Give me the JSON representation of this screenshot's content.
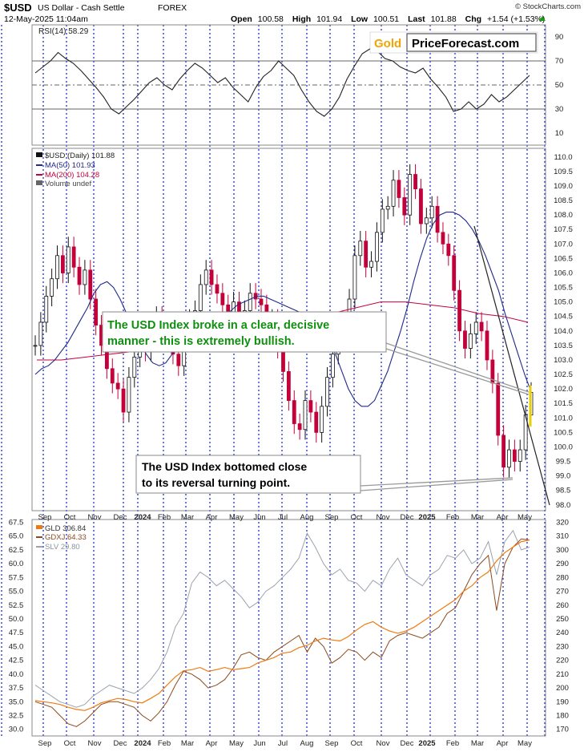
{
  "header": {
    "symbol": "$USD",
    "name": "US Dollar - Cash Settle",
    "exchange": "FOREX",
    "date": "12-May-2025 11:04am",
    "open_label": "Open",
    "open": "100.58",
    "high_label": "High",
    "high": "101.94",
    "low_label": "Low",
    "low": "100.51",
    "last_label": "Last",
    "last": "101.88",
    "chg_label": "Chg",
    "chg": "+1.54 (+1.53%)",
    "credit": "© StockCharts.com"
  },
  "logo": {
    "gold": "Gold",
    "rest": "PriceForecast.com"
  },
  "colors": {
    "price_up": "#111111",
    "price_down": "#c4003a",
    "ma50": "#1f2a8a",
    "ma200": "#c4003a",
    "gld": "#f07a12",
    "gdxj": "#8b4a1e",
    "slv": "#9aa3ad",
    "grid": "#1c2ed8",
    "annotation_green": "#0f8f0f"
  },
  "chart_data": [
    {
      "type": "line",
      "panel": "RSI",
      "title": "RSI(14) 58.29",
      "ylim": [
        0,
        100
      ],
      "y_ticks": [
        10,
        30,
        50,
        70,
        90
      ],
      "reference_lines": [
        30,
        50,
        70
      ],
      "series": [
        {
          "name": "RSI(14)",
          "values": [
            60,
            65,
            70,
            77,
            72,
            68,
            62,
            55,
            48,
            40,
            30,
            26,
            32,
            38,
            45,
            52,
            56,
            50,
            46,
            55,
            62,
            68,
            64,
            58,
            52,
            56,
            48,
            42,
            36,
            48,
            57,
            62,
            70,
            64,
            58,
            46,
            36,
            28,
            24,
            30,
            40,
            55,
            66,
            76,
            80,
            78,
            72,
            70,
            65,
            62,
            60,
            64,
            55,
            48,
            40,
            28,
            30,
            36,
            30,
            34,
            42,
            36,
            40,
            46,
            52,
            58
          ]
        }
      ]
    },
    {
      "type": "candlestick",
      "panel": "$USD (Daily)",
      "legend": [
        "$USD (Daily) 101.88",
        "MA(50) 101.93",
        "MA(200) 104.28",
        "Volume undef"
      ],
      "legend_placement": "top-left",
      "ylim": [
        97.8,
        110.3
      ],
      "y_ticks": [
        98.0,
        98.5,
        99.0,
        99.5,
        100.0,
        100.5,
        101.0,
        101.5,
        102.0,
        102.5,
        103.0,
        103.5,
        104.0,
        104.5,
        105.0,
        105.5,
        106.0,
        106.5,
        107.0,
        107.5,
        108.0,
        108.5,
        109.0,
        109.5,
        110.0
      ],
      "x_labels": [
        "Sep",
        "Oct",
        "Nov",
        "Dec",
        "2024",
        "Feb",
        "Mar",
        "Apr",
        "May",
        "Jun",
        "Jul",
        "Aug",
        "Sep",
        "Oct",
        "Nov",
        "Dec",
        "2025",
        "Feb",
        "Mar",
        "Apr",
        "May"
      ],
      "close": [
        103.5,
        104.3,
        105.2,
        105.8,
        106.6,
        106.0,
        106.9,
        106.2,
        105.6,
        106.1,
        105.1,
        104.2,
        103.5,
        102.7,
        102.2,
        102.0,
        101.2,
        102.4,
        103.1,
        103.6,
        103.3,
        104.2,
        104.5,
        103.9,
        104.3,
        103.2,
        102.8,
        103.8,
        104.4,
        104.7,
        105.6,
        106.1,
        105.6,
        105.3,
        104.9,
        104.3,
        105.0,
        104.5,
        104.7,
        105.3,
        105.1,
        104.9,
        104.2,
        104.4,
        103.4,
        102.6,
        101.6,
        100.8,
        100.6,
        101.6,
        101.2,
        100.5,
        101.4,
        102.4,
        103.2,
        103.9,
        104.3,
        105.1,
        106.6,
        107.1,
        106.2,
        106.4,
        107.4,
        108.2,
        108.3,
        109.2,
        108.6,
        108.0,
        109.4,
        108.9,
        107.7,
        107.9,
        108.3,
        107.4,
        107.0,
        106.6,
        105.4,
        104.0,
        103.4,
        103.9,
        104.3,
        104.0,
        103.0,
        102.2,
        100.4,
        99.3,
        99.9,
        99.5,
        99.9,
        101.1,
        101.88
      ],
      "ma50": [
        102.5,
        102.7,
        102.8,
        103.0,
        103.3,
        103.6,
        104.0,
        104.4,
        104.8,
        105.3,
        105.6,
        105.7,
        105.5,
        105.1,
        104.6,
        104.1,
        103.6,
        103.2,
        102.9,
        102.8,
        102.9,
        103.2,
        103.5,
        103.8,
        104.0,
        104.1,
        104.2,
        104.3,
        104.4,
        104.5,
        104.7,
        104.9,
        105.0,
        105.1,
        105.2,
        105.2,
        105.1,
        105.0,
        104.9,
        104.8,
        104.7,
        104.6,
        104.4,
        104.2,
        104.0,
        103.7,
        103.2,
        102.6,
        102.0,
        101.6,
        101.4,
        101.4,
        101.6,
        102.1,
        102.6,
        103.3,
        104.0,
        104.8,
        105.7,
        106.5,
        107.2,
        107.7,
        108.0,
        108.1,
        108.1,
        108.0,
        107.8,
        107.5,
        107.1,
        106.6,
        106.0,
        105.4,
        104.6,
        103.9,
        103.2,
        102.5,
        101.9
      ],
      "ma200": [
        103.0,
        103.0,
        103.1,
        103.2,
        103.3,
        103.4,
        103.5,
        103.6,
        103.8,
        104.0,
        104.2,
        104.4,
        104.6,
        104.8,
        105.0,
        105.0,
        104.9,
        104.8,
        104.6,
        104.5,
        104.3
      ],
      "annotations": [
        {
          "text_lines": [
            "The USD Index broke in a clear, decisive",
            "manner - this is extremely bullish."
          ],
          "color": "green"
        },
        {
          "text_lines": [
            "The USD Index bottomed close",
            "to its reversal turning point."
          ],
          "color": "black"
        }
      ]
    },
    {
      "type": "line",
      "panel": "Gold, Gold Miners, Silver",
      "legend": [
        "GLD 306.84",
        "GDXJ 64.33",
        "SLV 29.80"
      ],
      "legend_placement": "top-left",
      "y_left_ticks": [
        30.0,
        32.5,
        35.0,
        37.5,
        40.0,
        42.5,
        45.0,
        47.5,
        50.0,
        52.5,
        55.0,
        57.5,
        60.0,
        62.5,
        65.0,
        67.5
      ],
      "y_right_ticks": [
        170,
        180,
        190,
        200,
        210,
        220,
        230,
        240,
        250,
        260,
        270,
        280,
        290,
        300,
        310,
        320
      ],
      "ylim_left": [
        28.8,
        68.0
      ],
      "series": [
        {
          "name": "GLD",
          "values": [
            35.2,
            35.0,
            34.8,
            34.5,
            34.0,
            33.6,
            33.4,
            34.0,
            34.8,
            35.2,
            35.6,
            35.4,
            35.0,
            34.8,
            35.6,
            36.5,
            38.0,
            39.5,
            40.6,
            40.8,
            41.2,
            40.5,
            40.8,
            41.2,
            40.8,
            41.0,
            41.2,
            42.0,
            42.5,
            43.0,
            43.8,
            44.0,
            44.8,
            45.2,
            46.0,
            46.5,
            46.2,
            46.0,
            46.8,
            48.0,
            49.0,
            49.5,
            48.5,
            47.8,
            47.4,
            47.8,
            48.5,
            49.5,
            50.5,
            51.5,
            52.5,
            53.5,
            55.0,
            56.0,
            57.5,
            58.5,
            60.5,
            62.0,
            63.0,
            64.0,
            64.3
          ]
        },
        {
          "name": "GDXJ",
          "values": [
            35.0,
            34.5,
            34.0,
            32.5,
            31.0,
            30.5,
            31.5,
            33.0,
            34.5,
            35.0,
            35.0,
            34.5,
            34.0,
            32.5,
            31.5,
            33.0,
            35.0,
            38.0,
            40.5,
            40.0,
            39.0,
            37.5,
            38.0,
            39.0,
            41.0,
            43.5,
            44.0,
            43.0,
            42.5,
            44.0,
            45.0,
            46.0,
            47.0,
            44.0,
            46.5,
            45.0,
            42.0,
            43.0,
            44.5,
            44.0,
            42.5,
            44.0,
            43.0,
            46.0,
            47.0,
            47.5,
            47.0,
            46.5,
            47.5,
            48.5,
            51.0,
            52.0,
            55.0,
            58.0,
            60.0,
            61.5,
            51.5,
            60.0,
            63.0,
            64.5,
            64.3
          ]
        },
        {
          "name": "SLV",
          "values": [
            38.0,
            37.0,
            36.0,
            35.0,
            34.5,
            34.0,
            34.5,
            36.0,
            37.0,
            38.0,
            37.5,
            37.0,
            36.5,
            37.5,
            39.0,
            41.0,
            44.0,
            48.5,
            51.0,
            56.5,
            58.5,
            57.5,
            56.0,
            57.0,
            55.5,
            54.0,
            52.0,
            53.0,
            55.0,
            56.0,
            57.5,
            59.0,
            61.0,
            65.5,
            63.0,
            60.0,
            58.0,
            59.0,
            57.0,
            56.5,
            55.0,
            57.0,
            56.0,
            59.0,
            61.0,
            58.0,
            57.0,
            56.0,
            58.0,
            59.0,
            61.5,
            61.0,
            62.5,
            60.0,
            61.0,
            64.0,
            58.0,
            64.0,
            66.0,
            62.5,
            63.0
          ]
        }
      ]
    }
  ]
}
